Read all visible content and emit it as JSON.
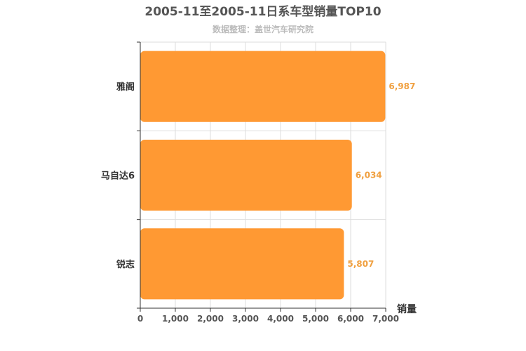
{
  "chart_data": {
    "type": "bar",
    "orientation": "horizontal",
    "title": "2005-11至2005-11日系车型销量TOP10",
    "subtitle": "数据整理：盖世汽车研究院",
    "categories": [
      "雅阁",
      "马自达6",
      "锐志"
    ],
    "values": [
      6987,
      6034,
      5807
    ],
    "value_labels": [
      "6,987",
      "6,034",
      "5,807"
    ],
    "xlabel": "销量",
    "ylabel": "",
    "xlim": [
      0,
      7000
    ],
    "xticks": [
      0,
      1000,
      2000,
      3000,
      4000,
      5000,
      6000,
      7000
    ],
    "xtick_labels": [
      "0",
      "1,000",
      "2,000",
      "3,000",
      "4,000",
      "5,000",
      "6,000",
      "7,000"
    ],
    "grid": true,
    "legend": "none",
    "colors": {
      "bar": "#ff9933",
      "value_label": "#f0a040",
      "grid": "#dddddd",
      "axis": "#333333"
    }
  }
}
